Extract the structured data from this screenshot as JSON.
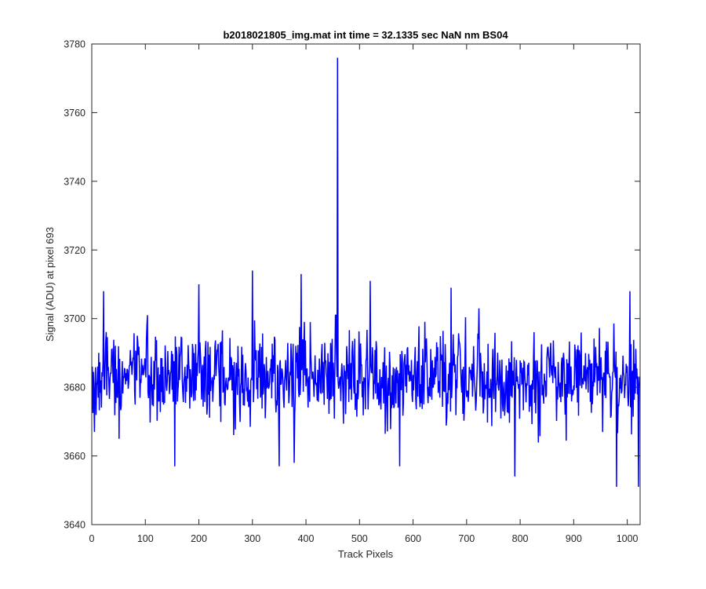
{
  "chart_data": {
    "type": "line",
    "title": "b2018021805_img.mat int time = 32.1335 sec  NaN nm BS04",
    "xlabel": "Track Pixels",
    "ylabel": "Signal (ADU) at pixel 693",
    "xlim": [
      0,
      1024
    ],
    "ylim": [
      3640,
      3780
    ],
    "xticks": [
      0,
      100,
      200,
      300,
      400,
      500,
      600,
      700,
      800,
      900,
      1000
    ],
    "yticks": [
      3640,
      3660,
      3680,
      3700,
      3720,
      3740,
      3760,
      3780
    ],
    "grid": false,
    "series": [
      {
        "color": "#0000ff",
        "x_start": 1,
        "x_step": 1,
        "noise_baseline": 3683,
        "noise_std": 6.5,
        "key_points": [
          {
            "x": 1,
            "y": 3686
          },
          {
            "x": 5,
            "y": 3667
          },
          {
            "x": 22,
            "y": 3708
          },
          {
            "x": 51,
            "y": 3665
          },
          {
            "x": 104,
            "y": 3701
          },
          {
            "x": 155,
            "y": 3657
          },
          {
            "x": 200,
            "y": 3710
          },
          {
            "x": 300,
            "y": 3714
          },
          {
            "x": 350,
            "y": 3657
          },
          {
            "x": 378,
            "y": 3658
          },
          {
            "x": 391,
            "y": 3713
          },
          {
            "x": 459,
            "y": 3776
          },
          {
            "x": 520,
            "y": 3711
          },
          {
            "x": 575,
            "y": 3657
          },
          {
            "x": 671,
            "y": 3709
          },
          {
            "x": 790,
            "y": 3654
          },
          {
            "x": 980,
            "y": 3651
          },
          {
            "x": 1005,
            "y": 3708
          },
          {
            "x": 1021,
            "y": 3651
          },
          {
            "x": 1024,
            "y": 3683
          }
        ]
      }
    ]
  }
}
